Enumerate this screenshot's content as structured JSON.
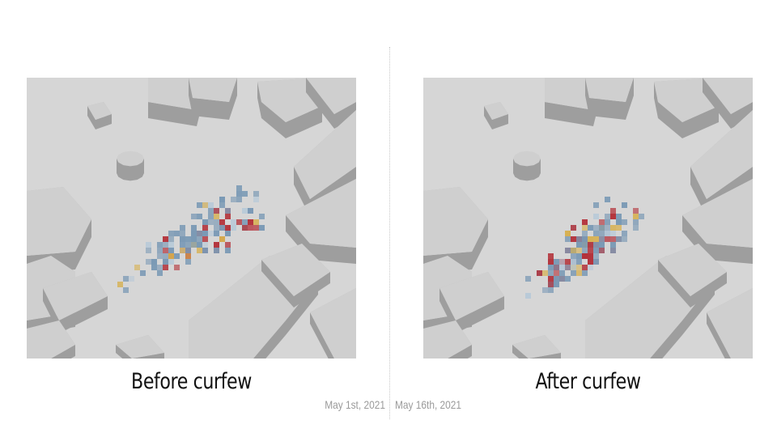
{
  "panels": [
    {
      "id": "before",
      "caption": "Before curfew",
      "date": "May 1st, 2021",
      "heatmap": {
        "seed": 7,
        "cells": 150,
        "spread": [
          0.55,
          0.18
        ],
        "angle_deg": -32,
        "center_frac": [
          0.5,
          0.56
        ],
        "color_mix": {
          "blue": 0.6,
          "red": 0.2,
          "yellow": 0.1,
          "light": 0.1
        }
      }
    },
    {
      "id": "after",
      "caption": "After curfew",
      "date": "May 16th, 2021",
      "heatmap": {
        "seed": 19,
        "cells": 150,
        "spread": [
          0.45,
          0.17
        ],
        "angle_deg": -38,
        "center_frac": [
          0.48,
          0.6
        ],
        "color_mix": {
          "blue": 0.55,
          "red": 0.27,
          "yellow": 0.08,
          "light": 0.1
        }
      }
    }
  ],
  "colors": {
    "ground": "#d6d6d6",
    "building_top": "#cfcfcf",
    "building_side": "#9e9e9e",
    "building_front": "#b9b9b9",
    "heat_blue": "#7b9ab5",
    "heat_red": "#b3323a",
    "heat_yellow": "#d7b050",
    "heat_light": "#b9cad8",
    "divider": "#c8c8c8",
    "date_text": "#9a9a9a"
  }
}
